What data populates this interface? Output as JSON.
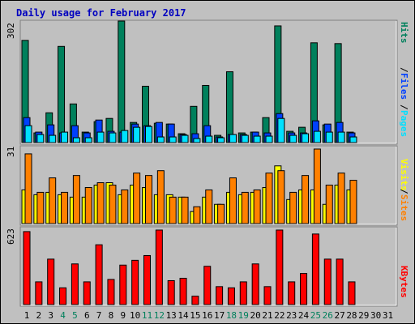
{
  "title": "Daily usage for February 2017",
  "colors": {
    "background": "#c0c0c0",
    "page_bg": "#ffffff",
    "hits": "#00805c",
    "files": "#0040ff",
    "pages": "#00e0ff",
    "visits": "#ffff00",
    "sites": "#ff8000",
    "kbytes": "#ff0000",
    "title": "#0000c0",
    "weekend_label": "#00805c",
    "weekday_label": "#000000"
  },
  "chart_data": [
    {
      "type": "bar",
      "panel": "hits-files-pages",
      "y_max_label": "302",
      "ylim": [
        0,
        302
      ],
      "right_labels": [
        "Pages",
        "Files",
        "Hits"
      ],
      "x": [
        1,
        2,
        3,
        4,
        5,
        6,
        7,
        8,
        9,
        10,
        11,
        12,
        13,
        14,
        15,
        16,
        17,
        18,
        19,
        20,
        21,
        22,
        23,
        24,
        25,
        26,
        27,
        28,
        29,
        30,
        31
      ],
      "series": [
        {
          "name": "Hits",
          "color": "#00805c",
          "values": [
            254,
            24,
            74,
            239,
            96,
            26,
            52,
            60,
            302,
            50,
            140,
            48,
            46,
            22,
            90,
            142,
            18,
            176,
            24,
            26,
            62,
            290,
            28,
            38,
            248,
            44,
            246,
            26,
            0,
            0,
            0
          ]
        },
        {
          "name": "Files",
          "color": "#0040ff",
          "values": [
            62,
            26,
            44,
            24,
            42,
            24,
            56,
            28,
            26,
            46,
            42,
            50,
            46,
            20,
            22,
            42,
            14,
            20,
            20,
            26,
            24,
            72,
            24,
            24,
            54,
            46,
            50,
            24,
            0,
            0,
            0
          ]
        },
        {
          "name": "Pages",
          "color": "#00e0ff",
          "values": [
            42,
            20,
            18,
            26,
            12,
            12,
            26,
            24,
            30,
            38,
            40,
            14,
            14,
            18,
            10,
            16,
            12,
            20,
            18,
            16,
            16,
            60,
            18,
            22,
            28,
            26,
            26,
            14,
            0,
            0,
            0
          ]
        }
      ]
    },
    {
      "type": "bar",
      "panel": "visits-sites",
      "y_max_label": "31",
      "ylim": [
        0,
        31
      ],
      "right_labels": [
        "Sites",
        "Visits"
      ],
      "x": [
        1,
        2,
        3,
        4,
        5,
        6,
        7,
        8,
        9,
        10,
        11,
        12,
        13,
        14,
        15,
        16,
        17,
        18,
        19,
        20,
        21,
        22,
        23,
        24,
        25,
        26,
        27,
        28,
        29,
        30,
        31
      ],
      "series": [
        {
          "name": "Visits",
          "color": "#ffff00",
          "values": [
            14,
            12,
            13,
            12,
            11,
            11,
            16,
            17,
            12,
            16,
            15,
            12,
            12,
            11,
            5,
            11,
            8,
            13,
            12,
            13,
            15,
            24,
            10,
            14,
            14,
            8,
            16,
            14,
            0,
            0,
            0
          ]
        },
        {
          "name": "Sites",
          "color": "#ff8000",
          "values": [
            29,
            13,
            19,
            13,
            20,
            15,
            17,
            16,
            14,
            21,
            20,
            22,
            11,
            11,
            7,
            14,
            8,
            19,
            13,
            14,
            21,
            22,
            13,
            20,
            31,
            16,
            21,
            18,
            0,
            0,
            0
          ]
        }
      ]
    },
    {
      "type": "bar",
      "panel": "kbytes",
      "y_max_label": "623",
      "ylim": [
        0,
        623
      ],
      "right_labels": [
        "KBytes"
      ],
      "x": [
        1,
        2,
        3,
        4,
        5,
        6,
        7,
        8,
        9,
        10,
        11,
        12,
        13,
        14,
        15,
        16,
        17,
        18,
        19,
        20,
        21,
        22,
        23,
        24,
        25,
        26,
        27,
        28,
        29,
        30,
        31
      ],
      "series": [
        {
          "name": "KBytes",
          "color": "#ff0000",
          "values": [
            610,
            190,
            380,
            140,
            340,
            190,
            500,
            210,
            330,
            370,
            410,
            623,
            200,
            220,
            70,
            320,
            150,
            140,
            190,
            340,
            150,
            623,
            190,
            260,
            590,
            380,
            380,
            190,
            0,
            0,
            0
          ]
        }
      ]
    }
  ],
  "x_tick_labels": [
    "1",
    "2",
    "3",
    "4",
    "5",
    "6",
    "7",
    "8",
    "9",
    "10",
    "11",
    "12",
    "13",
    "14",
    "15",
    "16",
    "17",
    "18",
    "19",
    "20",
    "21",
    "22",
    "23",
    "24",
    "25",
    "26",
    "27",
    "28",
    "29",
    "30",
    "31"
  ],
  "weekend_days": [
    4,
    5,
    11,
    12,
    18,
    19,
    25,
    26
  ]
}
